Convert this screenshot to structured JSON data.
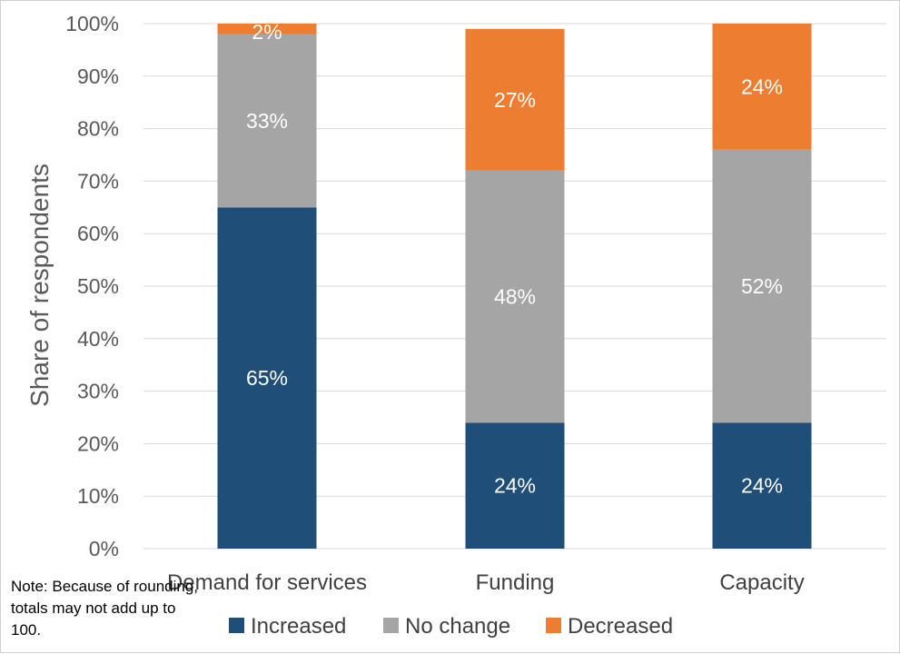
{
  "chart_data": {
    "type": "bar",
    "stacked": true,
    "categories": [
      "Demand for services",
      "Funding",
      "Capacity"
    ],
    "series": [
      {
        "name": "Increased",
        "color": "#1f4e79",
        "values": [
          65,
          24,
          24
        ],
        "labels": [
          "65%",
          "24%",
          "24%"
        ]
      },
      {
        "name": "No change",
        "color": "#a5a5a5",
        "values": [
          33,
          48,
          52
        ],
        "labels": [
          "33%",
          "48%",
          "52%"
        ]
      },
      {
        "name": "Decreased",
        "color": "#ed7d31",
        "values": [
          2,
          27,
          24
        ],
        "labels": [
          "2%",
          "27%",
          "24%"
        ]
      }
    ],
    "ylabel": "Share of respondents",
    "xlabel": "",
    "ylim": [
      0,
      100
    ],
    "yticks": [
      0,
      10,
      20,
      30,
      40,
      50,
      60,
      70,
      80,
      90,
      100
    ],
    "ytick_labels": [
      "0%",
      "10%",
      "20%",
      "30%",
      "40%",
      "50%",
      "60%",
      "70%",
      "80%",
      "90%",
      "100%"
    ],
    "grid": true,
    "legend": "bottom",
    "gridline_color": "#d9d9d9"
  },
  "note": "Note: Because of rounding, totals may not add up to 100."
}
